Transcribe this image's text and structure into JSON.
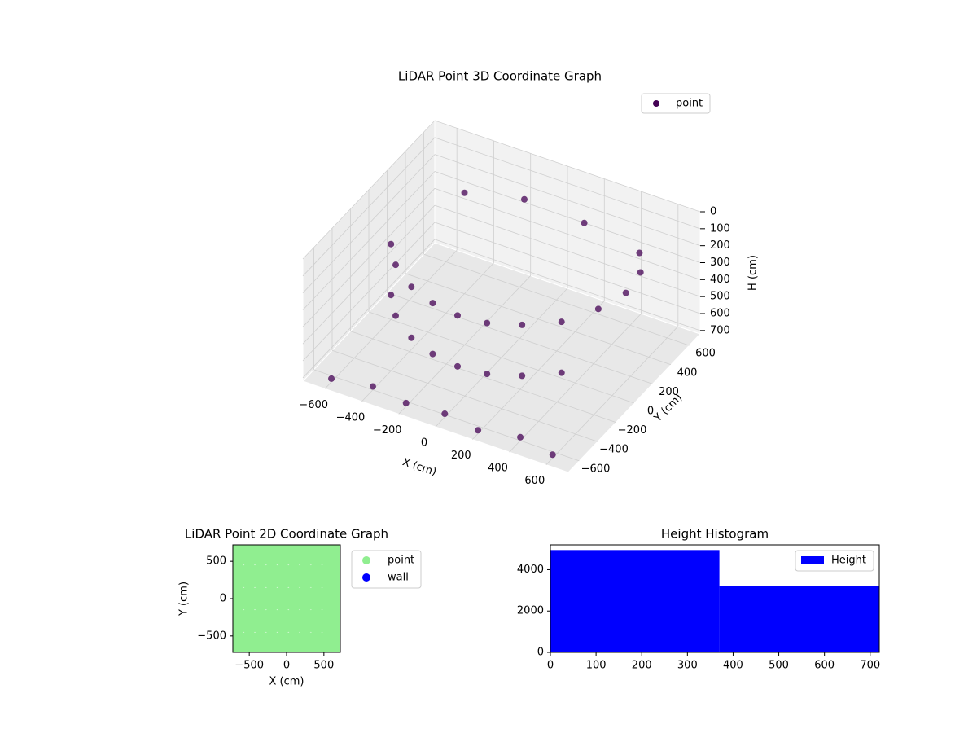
{
  "chart_data": [
    {
      "type": "scatter3d",
      "title": "LiDAR Point 3D Coordinate Graph",
      "xlabel": "X (cm)",
      "ylabel": "Y (cm)",
      "zlabel": "H (cm)",
      "xlim": [
        -720,
        720
      ],
      "ylim": [
        -720,
        720
      ],
      "zlim": [
        0,
        720
      ],
      "z_inverted": true,
      "xticks": [
        -600,
        -400,
        -200,
        0,
        200,
        400,
        600
      ],
      "yticks": [
        -600,
        -400,
        -200,
        0,
        200,
        400,
        600
      ],
      "zticks": [
        0,
        100,
        200,
        300,
        400,
        500,
        600,
        700
      ],
      "grid": true,
      "legend": "upper right",
      "series": [
        {
          "name": "point",
          "color": "#440154",
          "x": [
            -550,
            -450,
            -300,
            -150,
            0,
            150,
            300,
            450,
            550,
            600,
            580,
            500,
            -550,
            -450,
            -300,
            -150,
            0,
            150,
            300,
            450,
            -600,
            -400,
            -200,
            0,
            200,
            400,
            600,
            -350,
            -100,
            250
          ],
          "y": [
            -100,
            -250,
            -380,
            -450,
            -480,
            -460,
            -380,
            -250,
            -50,
            150,
            350,
            500,
            -100,
            -250,
            -380,
            -450,
            -480,
            -460,
            -380,
            -250,
            -650,
            -600,
            -640,
            -620,
            -660,
            -600,
            -650,
            300,
            450,
            400
          ],
          "z": [
            200,
            200,
            200,
            200,
            200,
            200,
            200,
            200,
            200,
            200,
            200,
            200,
            500,
            500,
            500,
            500,
            500,
            500,
            500,
            500,
            700,
            700,
            700,
            700,
            700,
            700,
            700,
            50,
            80,
            60
          ]
        }
      ]
    },
    {
      "type": "scatter",
      "title": "LiDAR Point 2D Coordinate Graph",
      "xlabel": "X (cm)",
      "ylabel": "Y (cm)",
      "xlim": [
        -720,
        720
      ],
      "ylim": [
        -720,
        720
      ],
      "xticks": [
        -500,
        0,
        500
      ],
      "yticks": [
        -500,
        0,
        500
      ],
      "legend": "outside right",
      "series": [
        {
          "name": "point",
          "color": "#90ee90",
          "x": [
            -650,
            -500,
            -350,
            -200,
            -50,
            100,
            250,
            400,
            550,
            650,
            -650,
            -500,
            -350,
            -200,
            -50,
            100,
            250,
            400,
            550,
            650,
            -650,
            -500,
            -350,
            -200,
            -50,
            100,
            250,
            400,
            550,
            650,
            -650,
            -500,
            -350,
            -200,
            -50,
            100,
            250,
            400,
            550,
            650,
            -650,
            -500,
            -350,
            -200,
            -50,
            100,
            250,
            400,
            550,
            650
          ],
          "y": [
            600,
            600,
            600,
            600,
            600,
            600,
            600,
            600,
            600,
            600,
            300,
            300,
            300,
            300,
            300,
            300,
            300,
            300,
            300,
            300,
            0,
            0,
            0,
            0,
            0,
            0,
            0,
            0,
            0,
            0,
            -300,
            -300,
            -300,
            -300,
            -300,
            -300,
            -300,
            -300,
            -300,
            -300,
            -600,
            -600,
            -600,
            -600,
            -600,
            -600,
            -600,
            -600,
            -600,
            -600
          ]
        },
        {
          "name": "wall",
          "color": "#0000ff",
          "x": [],
          "y": []
        }
      ]
    },
    {
      "type": "histogram",
      "title": "Height Histogram",
      "bins": [
        0,
        370,
        720
      ],
      "counts": [
        4950,
        3200
      ],
      "color": "#0000ff",
      "label": "Height",
      "xlim": [
        0,
        720
      ],
      "ylim": [
        0,
        5200
      ],
      "xticks": [
        0,
        100,
        200,
        300,
        400,
        500,
        600,
        700
      ],
      "yticks": [
        0,
        2000,
        4000
      ],
      "legend": "upper right"
    }
  ]
}
